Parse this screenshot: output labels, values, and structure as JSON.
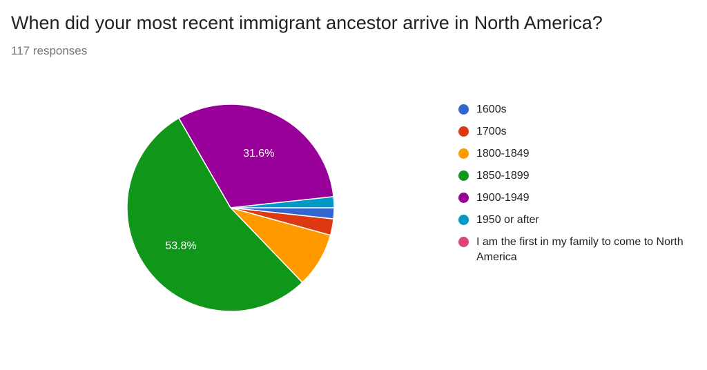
{
  "title": "When did your most recent immigrant ancestor arrive in North America?",
  "subtitle": "117 responses",
  "chart_data": {
    "type": "pie",
    "title": "When did your most recent immigrant ancestor arrive in North America?",
    "total_responses": 117,
    "categories": [
      "1600s",
      "1700s",
      "1800-1849",
      "1850-1899",
      "1900-1949",
      "1950 or after",
      "I am the first in my family to come to North America"
    ],
    "values": [
      2,
      3,
      10,
      63,
      37,
      2,
      0
    ],
    "colors": [
      "#3366cc",
      "#dc3912",
      "#ff9900",
      "#109618",
      "#990099",
      "#0099c6",
      "#dd4477"
    ],
    "data_labels": {
      "1850-1899": "53.8%",
      "1900-1949": "31.6%"
    },
    "legend_position": "right"
  }
}
